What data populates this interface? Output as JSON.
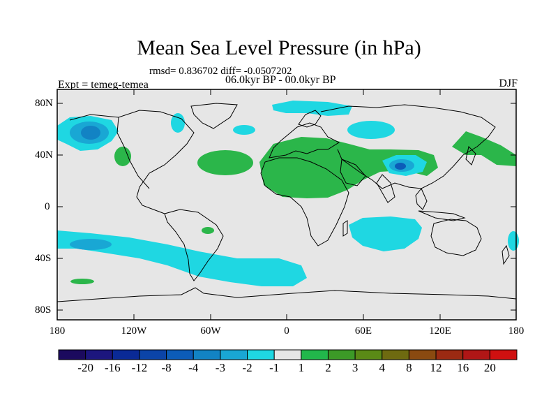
{
  "title": "Mean Sea Level Pressure (in hPa)",
  "stats": "rmsd= 0.836702 diff= -0.0507202",
  "period": "06.0kyr BP - 00.0kyr BP",
  "experiment": "Expt = temeg-temea",
  "season": "DJF",
  "axes": {
    "y_labels": [
      "80N",
      "40N",
      "0",
      "40S",
      "80S"
    ],
    "x_labels": [
      "180",
      "120W",
      "60W",
      "0",
      "60E",
      "120E",
      "180"
    ]
  },
  "colorbar": {
    "labels": [
      "-20",
      "-16",
      "-12",
      "-8",
      "-4",
      "-3",
      "-2",
      "-1",
      "1",
      "2",
      "3",
      "4",
      "8",
      "12",
      "16",
      "20"
    ],
    "colors": [
      "#1b0a5e",
      "#1c167e",
      "#0a2a96",
      "#0b44a8",
      "#0c5cb8",
      "#1283c4",
      "#19a7d4",
      "#1fd7e2",
      "#e6e6e6",
      "#22b74b",
      "#3c9a27",
      "#5a8a16",
      "#6e6a10",
      "#8a4a10",
      "#9b2a12",
      "#b01616",
      "#d01010"
    ]
  },
  "colors": {
    "ocean": "#e6e6e6",
    "positive": "#2bb64a",
    "negative_light": "#1fd7e2",
    "negative_mid": "#19a7d4",
    "negative_deep": "#1283c4",
    "negative_core": "#0c5cb8"
  }
}
